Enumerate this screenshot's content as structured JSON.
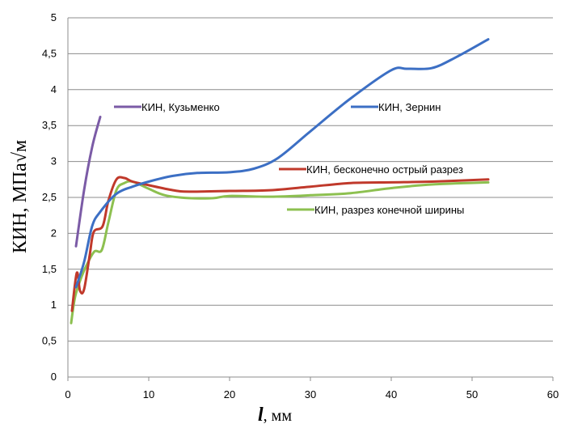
{
  "chart_data": {
    "type": "line",
    "xlim": [
      0,
      60
    ],
    "ylim": [
      0,
      5
    ],
    "x_ticks": [
      "0",
      "10",
      "20",
      "30",
      "40",
      "50",
      "60"
    ],
    "y_ticks": [
      "0",
      "0,5",
      "1",
      "1,5",
      "2",
      "2,5",
      "3",
      "3,5",
      "4",
      "4,5",
      "5"
    ],
    "ylabel": "КИН, МПа√м",
    "xlabel": {
      "symbol": "l",
      "unit": ", мм"
    },
    "grid": "horizontal",
    "series": [
      {
        "name": "КИН, Кузьменко",
        "color": "#7B5BA6",
        "points": [
          [
            1,
            1.82
          ],
          [
            2,
            2.6
          ],
          [
            3,
            3.2
          ],
          [
            4,
            3.62
          ]
        ]
      },
      {
        "name": "КИН, Зернин",
        "color": "#3C6FC4",
        "points": [
          [
            1,
            1.25
          ],
          [
            2,
            1.6
          ],
          [
            3,
            2.1
          ],
          [
            4,
            2.3
          ],
          [
            6,
            2.55
          ],
          [
            8,
            2.65
          ],
          [
            10,
            2.72
          ],
          [
            13,
            2.8
          ],
          [
            16,
            2.84
          ],
          [
            20,
            2.85
          ],
          [
            23,
            2.9
          ],
          [
            26,
            3.05
          ],
          [
            30,
            3.42
          ],
          [
            35,
            3.88
          ],
          [
            40,
            4.27
          ],
          [
            42,
            4.29
          ],
          [
            45,
            4.3
          ],
          [
            48,
            4.45
          ],
          [
            52,
            4.7
          ]
        ]
      },
      {
        "name": "КИН, бесконечно острый разрез",
        "color": "#C0392B",
        "points": [
          [
            0.5,
            0.92
          ],
          [
            1.1,
            1.45
          ],
          [
            1.5,
            1.2
          ],
          [
            2,
            1.22
          ],
          [
            2.7,
            1.7
          ],
          [
            3.2,
            2.02
          ],
          [
            4.3,
            2.1
          ],
          [
            5,
            2.45
          ],
          [
            6,
            2.75
          ],
          [
            7,
            2.77
          ],
          [
            8,
            2.72
          ],
          [
            10,
            2.67
          ],
          [
            13,
            2.6
          ],
          [
            15,
            2.58
          ],
          [
            20,
            2.59
          ],
          [
            25,
            2.6
          ],
          [
            30,
            2.65
          ],
          [
            35,
            2.7
          ],
          [
            40,
            2.71
          ],
          [
            45,
            2.72
          ],
          [
            52,
            2.75
          ]
        ]
      },
      {
        "name": "КИН, разрез конечной ширины",
        "color": "#8DC050",
        "points": [
          [
            0.4,
            0.75
          ],
          [
            0.9,
            1.12
          ],
          [
            1.7,
            1.4
          ],
          [
            2.5,
            1.6
          ],
          [
            3.3,
            1.75
          ],
          [
            4.2,
            1.77
          ],
          [
            5,
            2.15
          ],
          [
            6,
            2.6
          ],
          [
            7,
            2.7
          ],
          [
            8,
            2.72
          ],
          [
            10,
            2.62
          ],
          [
            12,
            2.53
          ],
          [
            15,
            2.49
          ],
          [
            18,
            2.49
          ],
          [
            20,
            2.52
          ],
          [
            25,
            2.51
          ],
          [
            30,
            2.53
          ],
          [
            35,
            2.56
          ],
          [
            40,
            2.63
          ],
          [
            45,
            2.68
          ],
          [
            52,
            2.71
          ]
        ]
      }
    ]
  }
}
